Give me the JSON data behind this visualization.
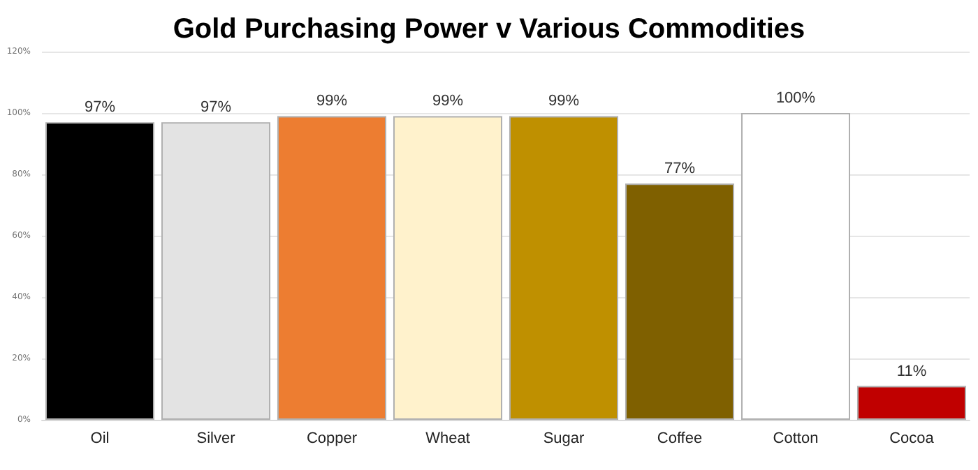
{
  "chart_data": {
    "type": "bar",
    "title": "Gold Purchasing Power v Various Commodities",
    "categories": [
      "Oil",
      "Silver",
      "Copper",
      "Wheat",
      "Sugar",
      "Coffee",
      "Cotton",
      "Cocoa"
    ],
    "values": [
      97,
      97,
      99,
      99,
      99,
      77,
      100,
      11
    ],
    "colors": [
      "#000000",
      "#e3e3e3",
      "#ed7d31",
      "#fff2cc",
      "#bf9000",
      "#7f6000",
      "#ffffff",
      "#c00000"
    ],
    "value_labels": [
      "97%",
      "97%",
      "99%",
      "99%",
      "99%",
      "77%",
      "100%",
      "11%"
    ],
    "ylim": [
      0,
      120
    ],
    "yticks": [
      {
        "value": 0,
        "label": "0%"
      },
      {
        "value": 20,
        "label": "20%"
      },
      {
        "value": 40,
        "label": "40%"
      },
      {
        "value": 60,
        "label": "60%"
      },
      {
        "value": 80,
        "label": "80%"
      },
      {
        "value": 100,
        "label": "100%"
      },
      {
        "value": 120,
        "label": "120%"
      }
    ],
    "grid": "y"
  }
}
